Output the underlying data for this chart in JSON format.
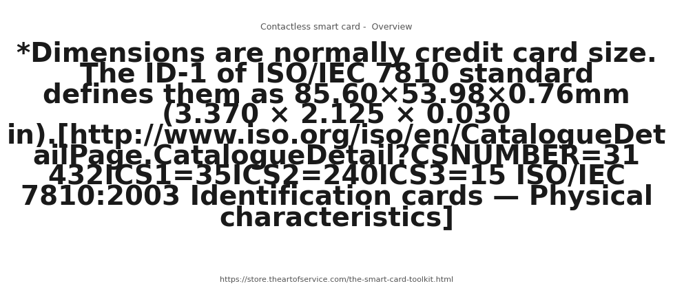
{
  "title": "Contactless smart card -  Overview",
  "line1": "*Dimensions are normally credit card size.",
  "line2": "The ID-1 of ISO/IEC 7810 standard",
  "line3": "defines them as 85.60×53.98×0.76mm",
  "line4": "(3.370 × 2.125 × 0.030",
  "line5": "in).[http://www.iso.org/iso/en/CatalogueDet",
  "line6": "ailPage.CatalogueDetail?CSNUMBER=31",
  "line7": "432ICS1=35ICS2=240ICS3=15 ISO/IEC",
  "line8": "7810:2003 Identification cards — Physical",
  "line9": "characteristics]",
  "footer": "https://store.theartofservice.com/the-smart-card-toolkit.html",
  "bg_color": "#ffffff",
  "title_color": "#555555",
  "main_text_color": "#1a1a1a",
  "footer_color": "#555555",
  "title_fontsize": 9,
  "main_fontsize": 28,
  "footer_fontsize": 8
}
